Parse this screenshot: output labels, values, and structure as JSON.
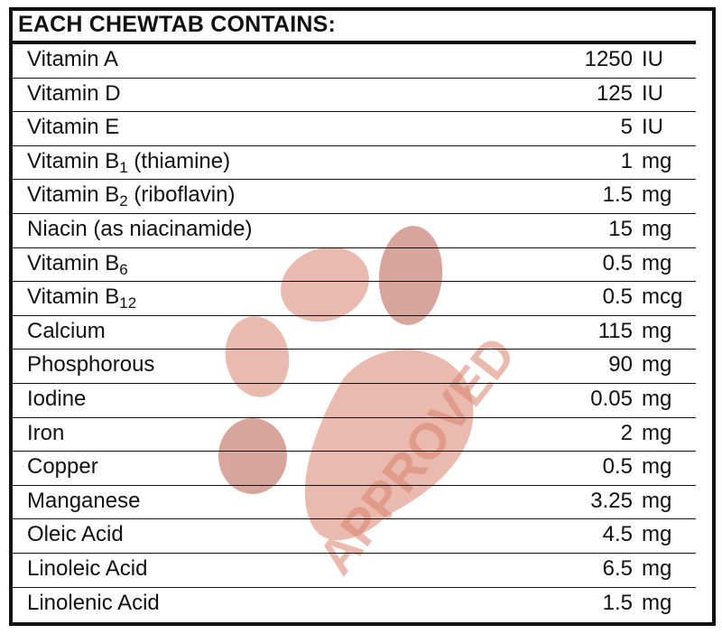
{
  "title": "EACH CHEWTAB CONTAINS:",
  "watermark": {
    "text": "APPROVED",
    "icon": "paw-print-icon",
    "color": "#d9826e"
  },
  "rows": [
    {
      "name": "Vitamin A",
      "sub": "",
      "suffix": "",
      "amount": "1250",
      "unit": "IU"
    },
    {
      "name": "Vitamin D",
      "sub": "",
      "suffix": "",
      "amount": "125",
      "unit": "IU"
    },
    {
      "name": "Vitamin E",
      "sub": "",
      "suffix": "",
      "amount": "5",
      "unit": "IU"
    },
    {
      "name": "Vitamin B",
      "sub": "1",
      "suffix": " (thiamine)",
      "amount": "1",
      "unit": "mg"
    },
    {
      "name": "Vitamin B",
      "sub": "2",
      "suffix": " (riboflavin)",
      "amount": "1.5",
      "unit": "mg"
    },
    {
      "name": "Niacin (as niacinamide)",
      "sub": "",
      "suffix": "",
      "amount": "15",
      "unit": "mg"
    },
    {
      "name": "Vitamin B",
      "sub": "6",
      "suffix": "",
      "amount": "0.5",
      "unit": "mg"
    },
    {
      "name": "Vitamin B",
      "sub": "12",
      "suffix": "",
      "amount": "0.5",
      "unit": "mcg"
    },
    {
      "name": "Calcium",
      "sub": "",
      "suffix": "",
      "amount": "115",
      "unit": "mg"
    },
    {
      "name": "Phosphorous",
      "sub": "",
      "suffix": "",
      "amount": "90",
      "unit": "mg"
    },
    {
      "name": "Iodine",
      "sub": "",
      "suffix": "",
      "amount": "0.05",
      "unit": "mg"
    },
    {
      "name": "Iron",
      "sub": "",
      "suffix": "",
      "amount": "2",
      "unit": "mg"
    },
    {
      "name": "Copper",
      "sub": "",
      "suffix": "",
      "amount": "0.5",
      "unit": "mg"
    },
    {
      "name": "Manganese",
      "sub": "",
      "suffix": "",
      "amount": "3.25",
      "unit": "mg"
    },
    {
      "name": "Oleic Acid",
      "sub": "",
      "suffix": "",
      "amount": "4.5",
      "unit": "mg"
    },
    {
      "name": "Linoleic Acid",
      "sub": "",
      "suffix": "",
      "amount": "6.5",
      "unit": "mg"
    },
    {
      "name": "Linolenic Acid",
      "sub": "",
      "suffix": "",
      "amount": "1.5",
      "unit": "mg"
    }
  ]
}
